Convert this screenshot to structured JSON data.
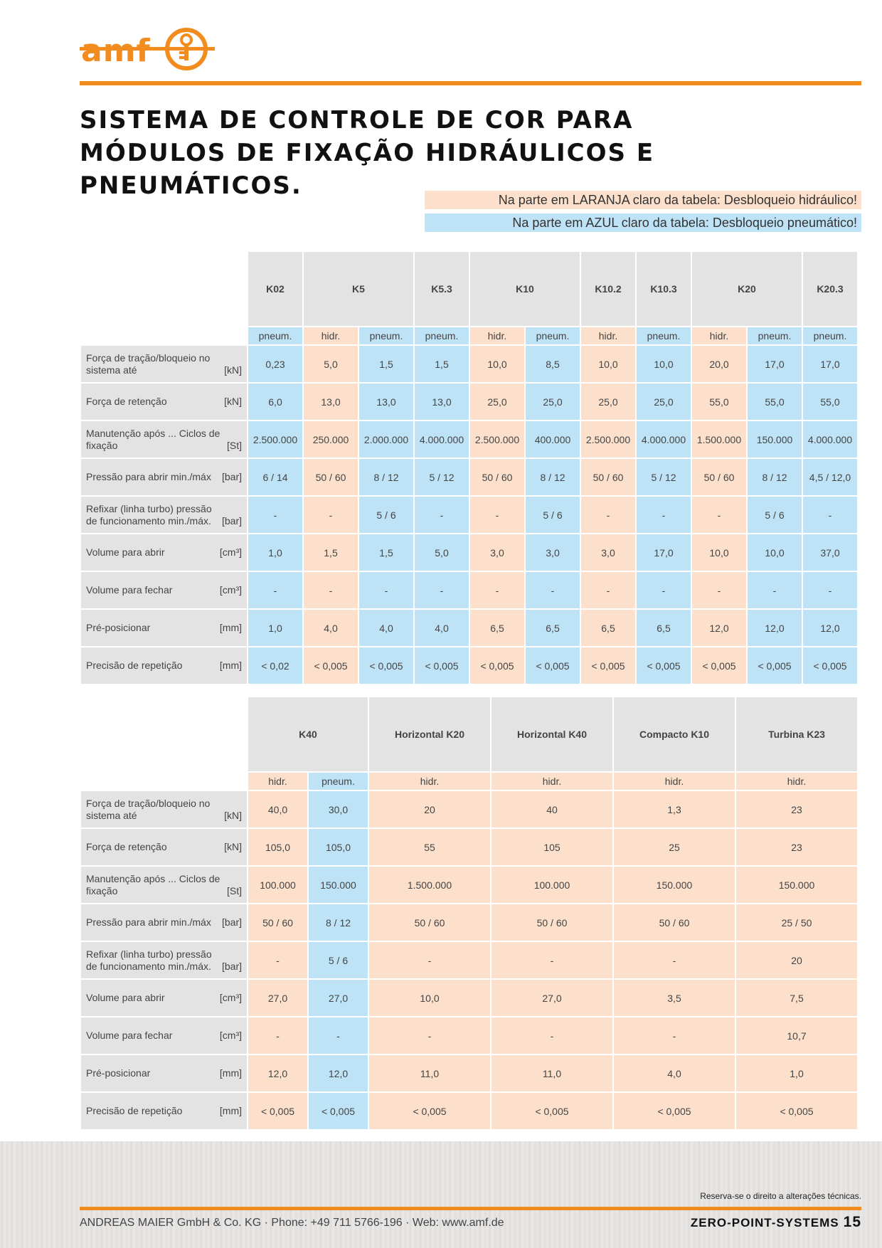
{
  "brand": {
    "logo_text": "amf",
    "orange": "#f28c1e"
  },
  "title": "SISTEMA DE CONTROLE DE COR PARA MÓDULOS DE FIXAÇÃO HIDRÁULICOS E PNEUMÁTICOS.",
  "legend": {
    "orange_text": "Na parte em LARANJA claro da tabela: Desbloqueio hidráulico!",
    "blue_text": "Na parte em AZUL claro da tabela: Desbloqueio pneumático!",
    "orange_color": "#fce0cc",
    "blue_color": "#bfe3f6"
  },
  "row_labels": [
    {
      "label": "Força de tração/bloqueio no sistema até",
      "unit": "[kN]"
    },
    {
      "label": "Força de retenção",
      "unit": "[kN]"
    },
    {
      "label": "Manutenção após ... Ciclos de fixação",
      "unit": "[St]"
    },
    {
      "label": "Pressão para abrir min./máx",
      "unit": "[bar]"
    },
    {
      "label": "Refixar (linha turbo) pressão de funcionamento min./máx.",
      "unit": "[bar]"
    },
    {
      "label": "Volume para abrir",
      "unit": "[cm³]"
    },
    {
      "label": "Volume para fechar",
      "unit": "[cm³]"
    },
    {
      "label": "Pré-posicionar",
      "unit": "[mm]"
    },
    {
      "label": "Precisão de repetição",
      "unit": "[mm]"
    }
  ],
  "table1": {
    "groups": [
      {
        "name": "K02",
        "span": 1
      },
      {
        "name": "K5",
        "span": 2
      },
      {
        "name": "K5.3",
        "span": 1
      },
      {
        "name": "K10",
        "span": 2
      },
      {
        "name": "K10.2",
        "span": 1
      },
      {
        "name": "K10.3",
        "span": 1
      },
      {
        "name": "K20",
        "span": 2
      },
      {
        "name": "K20.3",
        "span": 1
      }
    ],
    "columns": [
      {
        "mode": "pneum.",
        "type": "p",
        "values": [
          "0,23",
          "6,0",
          "2.500.000",
          "6 / 14",
          "-",
          "1,0",
          "-",
          "1,0",
          "< 0,02"
        ]
      },
      {
        "mode": "hidr.",
        "type": "h",
        "values": [
          "5,0",
          "13,0",
          "250.000",
          "50 / 60",
          "-",
          "1,5",
          "-",
          "4,0",
          "< 0,005"
        ]
      },
      {
        "mode": "pneum.",
        "type": "p",
        "values": [
          "1,5",
          "13,0",
          "2.000.000",
          "8 / 12",
          "5 / 6",
          "1,5",
          "-",
          "4,0",
          "< 0,005"
        ]
      },
      {
        "mode": "pneum.",
        "type": "p",
        "values": [
          "1,5",
          "13,0",
          "4.000.000",
          "5 / 12",
          "-",
          "5,0",
          "-",
          "4,0",
          "< 0,005"
        ]
      },
      {
        "mode": "hidr.",
        "type": "h",
        "values": [
          "10,0",
          "25,0",
          "2.500.000",
          "50 / 60",
          "-",
          "3,0",
          "-",
          "6,5",
          "< 0,005"
        ]
      },
      {
        "mode": "pneum.",
        "type": "p",
        "values": [
          "8,5",
          "25,0",
          "400.000",
          "8 / 12",
          "5 / 6",
          "3,0",
          "-",
          "6,5",
          "< 0,005"
        ]
      },
      {
        "mode": "hidr.",
        "type": "h",
        "values": [
          "10,0",
          "25,0",
          "2.500.000",
          "50 / 60",
          "-",
          "3,0",
          "-",
          "6,5",
          "< 0,005"
        ]
      },
      {
        "mode": "pneum.",
        "type": "p",
        "values": [
          "10,0",
          "25,0",
          "4.000.000",
          "5 / 12",
          "-",
          "17,0",
          "-",
          "6,5",
          "< 0,005"
        ]
      },
      {
        "mode": "hidr.",
        "type": "h",
        "values": [
          "20,0",
          "55,0",
          "1.500.000",
          "50 / 60",
          "-",
          "10,0",
          "-",
          "12,0",
          "< 0,005"
        ]
      },
      {
        "mode": "pneum.",
        "type": "p",
        "values": [
          "17,0",
          "55,0",
          "150.000",
          "8 / 12",
          "5 / 6",
          "10,0",
          "-",
          "12,0",
          "< 0,005"
        ]
      },
      {
        "mode": "pneum.",
        "type": "p",
        "values": [
          "17,0",
          "55,0",
          "4.000.000",
          "4,5 / 12,0",
          "-",
          "37,0",
          "-",
          "12,0",
          "< 0,005"
        ]
      }
    ]
  },
  "table2": {
    "groups": [
      {
        "name": "K40",
        "span": 2
      },
      {
        "name": "Horizontal K20",
        "span": 1
      },
      {
        "name": "Horizontal K40",
        "span": 1
      },
      {
        "name": "Compacto K10",
        "span": 1
      },
      {
        "name": "Turbina K23",
        "span": 1
      }
    ],
    "columns": [
      {
        "mode": "hidr.",
        "type": "h",
        "values": [
          "40,0",
          "105,0",
          "100.000",
          "50 / 60",
          "-",
          "27,0",
          "-",
          "12,0",
          "< 0,005"
        ]
      },
      {
        "mode": "pneum.",
        "type": "p",
        "values": [
          "30,0",
          "105,0",
          "150.000",
          "8 / 12",
          "5 / 6",
          "27,0",
          "-",
          "12,0",
          "< 0,005"
        ]
      },
      {
        "mode": "hidr.",
        "type": "h",
        "values": [
          "20",
          "55",
          "1.500.000",
          "50 / 60",
          "-",
          "10,0",
          "-",
          "11,0",
          "< 0,005"
        ]
      },
      {
        "mode": "hidr.",
        "type": "h",
        "values": [
          "40",
          "105",
          "100.000",
          "50 / 60",
          "-",
          "27,0",
          "-",
          "11,0",
          "< 0,005"
        ]
      },
      {
        "mode": "hidr.",
        "type": "h",
        "values": [
          "1,3",
          "25",
          "150.000",
          "50 / 60",
          "-",
          "3,5",
          "-",
          "4,0",
          "< 0,005"
        ]
      },
      {
        "mode": "hidr.",
        "type": "h",
        "values": [
          "23",
          "23",
          "150.000",
          "25 / 50",
          "20",
          "7,5",
          "10,7",
          "1,0",
          "< 0,005"
        ]
      }
    ]
  },
  "footer": {
    "note": "Reserva-se o direito a alterações técnicas.",
    "company": "ANDREAS MAIER GmbH & Co. KG · Phone: +49 711 5766-196 · Web: www.amf.de",
    "product_line": "ZERO-POINT-SYSTEMS",
    "page_number": "15"
  }
}
